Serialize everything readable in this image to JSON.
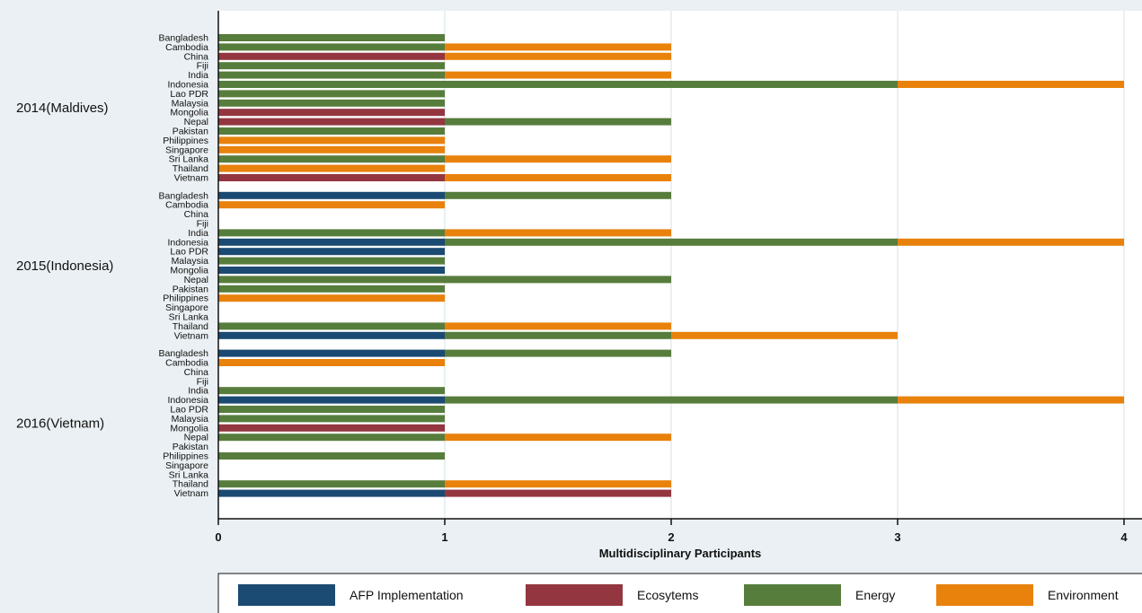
{
  "chart_data": {
    "type": "bar",
    "orientation": "horizontal",
    "stacked": true,
    "xlabel": "Multidisciplinary Participants",
    "xlim": [
      0,
      4
    ],
    "xticks": [
      0,
      1,
      2,
      3,
      4
    ],
    "grid": true,
    "legend_position": "bottom",
    "colors": {
      "AFP Implementation": "#1b4a72",
      "Ecosytems": "#933640",
      "Energy": "#577d3c",
      "Environment": "#e8820c"
    },
    "series": [
      {
        "name": "AFP Implementation"
      },
      {
        "name": "Ecosytems"
      },
      {
        "name": "Energy"
      },
      {
        "name": "Environment"
      }
    ],
    "groups": [
      {
        "label": "2014(Maldives)",
        "rows": [
          {
            "country": "Bangladesh",
            "values": [
              0,
              0,
              1,
              0
            ]
          },
          {
            "country": "Cambodia",
            "values": [
              0,
              0,
              1,
              1
            ]
          },
          {
            "country": "China",
            "values": [
              0,
              1,
              0,
              1
            ]
          },
          {
            "country": "Fiji",
            "values": [
              0,
              0,
              1,
              0
            ]
          },
          {
            "country": "India",
            "values": [
              0,
              0,
              1,
              1
            ]
          },
          {
            "country": "Indonesia",
            "values": [
              0,
              0,
              3,
              1
            ]
          },
          {
            "country": "Lao PDR",
            "values": [
              0,
              0,
              1,
              0
            ]
          },
          {
            "country": "Malaysia",
            "values": [
              0,
              0,
              1,
              0
            ]
          },
          {
            "country": "Mongolia",
            "values": [
              0,
              1,
              0,
              0
            ]
          },
          {
            "country": "Nepal",
            "values": [
              0,
              1,
              1,
              0
            ]
          },
          {
            "country": "Pakistan",
            "values": [
              0,
              0,
              1,
              0
            ]
          },
          {
            "country": "Philippines",
            "values": [
              0,
              0,
              0,
              1
            ]
          },
          {
            "country": "Singapore",
            "values": [
              0,
              0,
              0,
              1
            ]
          },
          {
            "country": "Sri Lanka",
            "values": [
              0,
              0,
              1,
              1
            ]
          },
          {
            "country": "Thailand",
            "values": [
              0,
              0,
              0,
              1
            ]
          },
          {
            "country": "Vietnam",
            "values": [
              0,
              1,
              0,
              1
            ]
          }
        ]
      },
      {
        "label": "2015(Indonesia)",
        "rows": [
          {
            "country": "Bangladesh",
            "values": [
              1,
              0,
              1,
              0
            ]
          },
          {
            "country": "Cambodia",
            "values": [
              0,
              0,
              0,
              1
            ]
          },
          {
            "country": "China",
            "values": [
              0,
              0,
              0,
              0
            ]
          },
          {
            "country": "Fiji",
            "values": [
              0,
              0,
              0,
              0
            ]
          },
          {
            "country": "India",
            "values": [
              0,
              0,
              1,
              1
            ]
          },
          {
            "country": "Indonesia",
            "values": [
              1,
              0,
              2,
              1
            ]
          },
          {
            "country": "Lao PDR",
            "values": [
              1,
              0,
              0,
              0
            ]
          },
          {
            "country": "Malaysia",
            "values": [
              0,
              0,
              1,
              0
            ]
          },
          {
            "country": "Mongolia",
            "values": [
              1,
              0,
              0,
              0
            ]
          },
          {
            "country": "Nepal",
            "values": [
              0,
              0,
              2,
              0
            ]
          },
          {
            "country": "Pakistan",
            "values": [
              0,
              0,
              1,
              0
            ]
          },
          {
            "country": "Philippines",
            "values": [
              0,
              0,
              0,
              1
            ]
          },
          {
            "country": "Singapore",
            "values": [
              0,
              0,
              0,
              0
            ]
          },
          {
            "country": "Sri Lanka",
            "values": [
              0,
              0,
              0,
              0
            ]
          },
          {
            "country": "Thailand",
            "values": [
              0,
              0,
              1,
              1
            ]
          },
          {
            "country": "Vietnam",
            "values": [
              1,
              0,
              1,
              1
            ]
          }
        ]
      },
      {
        "label": "2016(Vietnam)",
        "rows": [
          {
            "country": "Bangladesh",
            "values": [
              1,
              0,
              1,
              0
            ]
          },
          {
            "country": "Cambodia",
            "values": [
              0,
              0,
              0,
              1
            ]
          },
          {
            "country": "China",
            "values": [
              0,
              0,
              0,
              0
            ]
          },
          {
            "country": "Fiji",
            "values": [
              0,
              0,
              0,
              0
            ]
          },
          {
            "country": "India",
            "values": [
              0,
              0,
              1,
              0
            ]
          },
          {
            "country": "Indonesia",
            "values": [
              1,
              0,
              2,
              1
            ]
          },
          {
            "country": "Lao PDR",
            "values": [
              0,
              0,
              1,
              0
            ]
          },
          {
            "country": "Malaysia",
            "values": [
              0,
              0,
              1,
              0
            ]
          },
          {
            "country": "Mongolia",
            "values": [
              0,
              1,
              0,
              0
            ]
          },
          {
            "country": "Nepal",
            "values": [
              0,
              0,
              1,
              1
            ]
          },
          {
            "country": "Pakistan",
            "values": [
              0,
              0,
              0,
              0
            ]
          },
          {
            "country": "Philippines",
            "values": [
              0,
              0,
              1,
              0
            ]
          },
          {
            "country": "Singapore",
            "values": [
              0,
              0,
              0,
              0
            ]
          },
          {
            "country": "Sri Lanka",
            "values": [
              0,
              0,
              0,
              0
            ]
          },
          {
            "country": "Thailand",
            "values": [
              0,
              0,
              1,
              1
            ]
          },
          {
            "country": "Vietnam",
            "values": [
              1,
              1,
              0,
              0
            ]
          }
        ]
      }
    ]
  }
}
